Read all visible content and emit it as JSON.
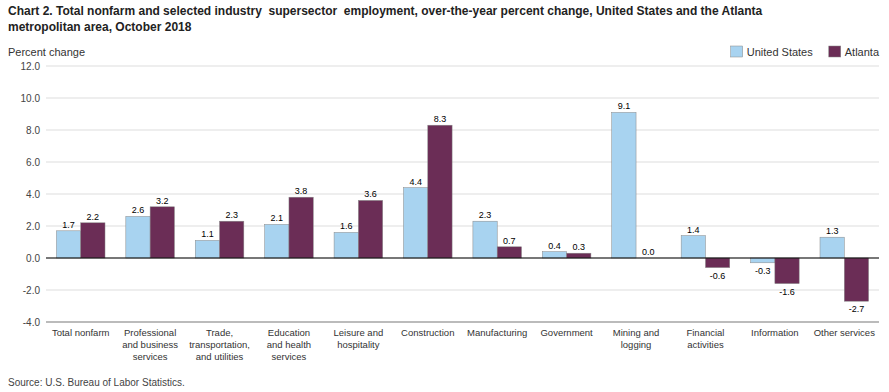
{
  "chart_data": {
    "type": "bar",
    "title": "Chart 2. Total nonfarm and selected industry  supersector  employment, over-the-year percent change, United States and the Atlanta\nmetropolitan area, October 2018",
    "y_label": "Percent change",
    "source": "Source: U.S. Bureau of Labor Statistics.",
    "categories": [
      "Total nonfarm",
      "Professional\nand business\nservices",
      "Trade,\ntransportation,\nand utilities",
      "Education\nand health\nservices",
      "Leisure and\nhospitality",
      "Construction",
      "Manufacturing",
      "Government",
      "Mining and\nlogging",
      "Financial\nactivities",
      "Information",
      "Other services"
    ],
    "series": [
      {
        "name": "United States",
        "color": "#a8d3f0",
        "values": [
          1.7,
          2.6,
          1.1,
          2.1,
          1.6,
          4.4,
          2.3,
          0.4,
          9.1,
          1.4,
          -0.3,
          1.3
        ]
      },
      {
        "name": "Atlanta",
        "color": "#6B2D56",
        "values": [
          2.2,
          3.2,
          2.3,
          3.8,
          3.6,
          8.3,
          0.7,
          0.3,
          0.0,
          -0.6,
          -1.6,
          -2.7
        ],
        "value_labels": [
          "2.2",
          "3.2",
          "2.3",
          "3.8",
          "3.6",
          "8.3",
          "0.7",
          "0.3",
          "0.0",
          "-0.6",
          "-1.6",
          "-2.7"
        ]
      }
    ],
    "ylim": [
      -4.0,
      12.0
    ],
    "yticks": [
      {
        "value": -4.0,
        "label": "-4.0"
      },
      {
        "value": -2.0,
        "label": "-2.0"
      },
      {
        "value": 0.0,
        "label": "0.0"
      },
      {
        "value": 2.0,
        "label": "2.0"
      },
      {
        "value": 4.0,
        "label": "4.0"
      },
      {
        "value": 6.0,
        "label": "6.0"
      },
      {
        "value": 8.0,
        "label": "8.0"
      },
      {
        "value": 10.0,
        "label": "10.0"
      },
      {
        "value": 12.0,
        "label": "12.0"
      }
    ],
    "grid": true,
    "legend": "top",
    "data_labels": true
  }
}
